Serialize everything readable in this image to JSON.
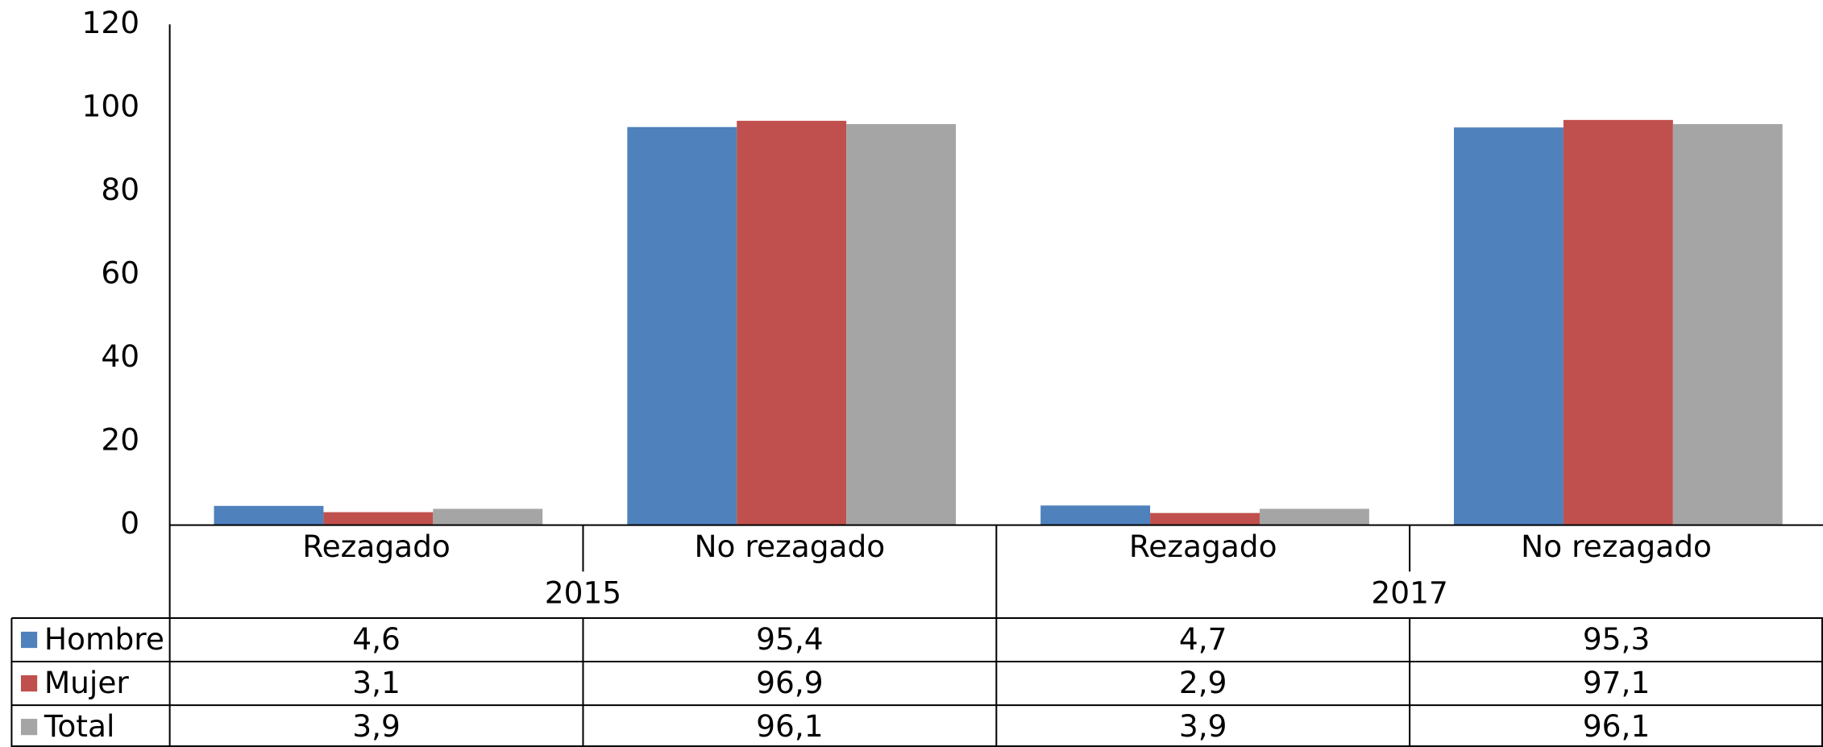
{
  "chart_data": {
    "type": "bar",
    "categories": [
      "Rezagado",
      "No rezagado",
      "Rezagado",
      "No rezagado"
    ],
    "groups": [
      "2015",
      "2017"
    ],
    "series": [
      {
        "name": "Hombre",
        "color": "#4f81bd",
        "values": [
          4.6,
          95.4,
          4.7,
          95.3
        ],
        "value_labels": [
          "4,6",
          "95,4",
          "4,7",
          "95,3"
        ]
      },
      {
        "name": "Mujer",
        "color": "#c0504d",
        "values": [
          3.1,
          96.9,
          2.9,
          97.1
        ],
        "value_labels": [
          "3,1",
          "96,9",
          "2,9",
          "97,1"
        ]
      },
      {
        "name": "Total",
        "color": "#a5a5a5",
        "values": [
          3.9,
          96.1,
          3.9,
          96.1
        ],
        "value_labels": [
          "3,9",
          "96,1",
          "3,9",
          "96,1"
        ]
      }
    ],
    "ylim": [
      0,
      120
    ],
    "yticks": [
      0,
      20,
      40,
      60,
      80,
      100,
      120
    ],
    "grid": false
  }
}
